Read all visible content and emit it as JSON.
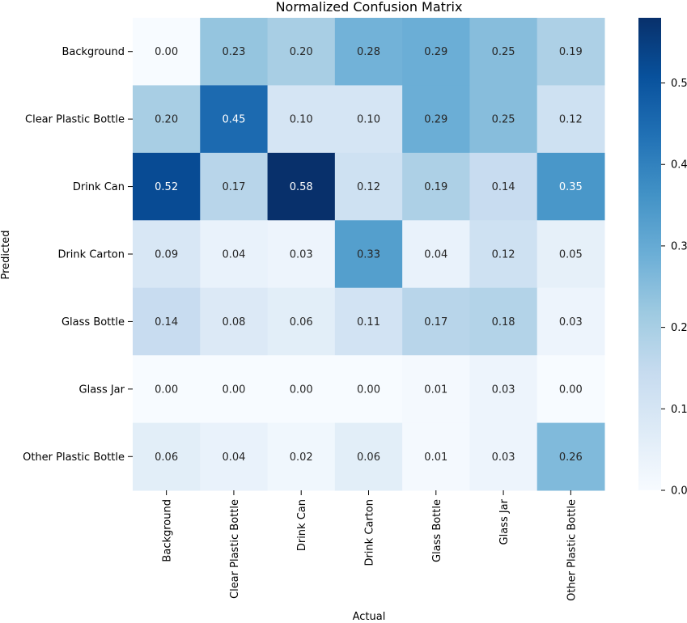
{
  "chart_data": {
    "type": "heatmap",
    "title": "Normalized Confusion Matrix",
    "xlabel": "Actual",
    "ylabel": "Predicted",
    "x_categories": [
      "Background",
      "Clear Plastic Bottle",
      "Drink Can",
      "Drink Carton",
      "Glass Bottle",
      "Glass Jar",
      "Other Plastic Bottle"
    ],
    "y_categories": [
      "Background",
      "Clear Plastic Bottle",
      "Drink Can",
      "Drink Carton",
      "Glass Bottle",
      "Glass Jar",
      "Other Plastic Bottle"
    ],
    "values": [
      [
        0.0,
        0.23,
        0.2,
        0.28,
        0.29,
        0.25,
        0.19
      ],
      [
        0.2,
        0.45,
        0.1,
        0.1,
        0.29,
        0.25,
        0.12
      ],
      [
        0.52,
        0.17,
        0.58,
        0.12,
        0.19,
        0.14,
        0.35
      ],
      [
        0.09,
        0.04,
        0.03,
        0.33,
        0.04,
        0.12,
        0.05
      ],
      [
        0.14,
        0.08,
        0.06,
        0.11,
        0.17,
        0.18,
        0.03
      ],
      [
        0.0,
        0.0,
        0.0,
        0.0,
        0.01,
        0.03,
        0.0
      ],
      [
        0.06,
        0.04,
        0.02,
        0.06,
        0.01,
        0.03,
        0.26
      ]
    ],
    "value_format": "2 decimals",
    "colormap": "Blues",
    "color_range": [
      0.0,
      0.58
    ],
    "colorbar_ticks": [
      "0.0",
      "0.1",
      "0.2",
      "0.3",
      "0.4",
      "0.5"
    ],
    "colorbar_tick_values": [
      0.0,
      0.1,
      0.2,
      0.3,
      0.4,
      0.5
    ]
  }
}
